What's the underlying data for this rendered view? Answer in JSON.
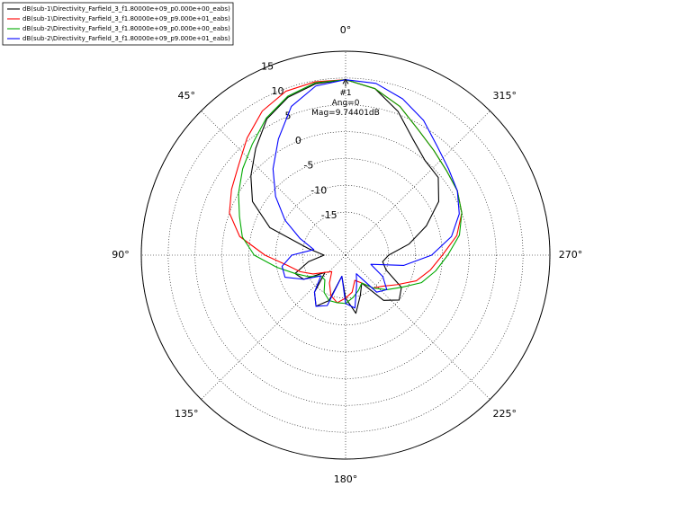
{
  "chart_data": {
    "type": "polar-line",
    "x": [
      0,
      10,
      20,
      30,
      40,
      50,
      60,
      70,
      80,
      90,
      100,
      110,
      120,
      130,
      140,
      150,
      160,
      170,
      180,
      190,
      200,
      210,
      220,
      230,
      240,
      250,
      260,
      270,
      280,
      290,
      300,
      310,
      320,
      330,
      340,
      350
    ],
    "xticks": [
      {
        "value": 0,
        "label": "0°"
      },
      {
        "value": 45,
        "label": "45°"
      },
      {
        "value": 90,
        "label": "90°"
      },
      {
        "value": 135,
        "label": "135°"
      },
      {
        "value": 180,
        "label": "180°"
      },
      {
        "value": 225,
        "label": "225°"
      },
      {
        "value": 270,
        "label": "270°"
      },
      {
        "value": 315,
        "label": "315°"
      }
    ],
    "ylim": [
      -23,
      15
    ],
    "yticks": [
      -15,
      -10,
      -5,
      0,
      5,
      10,
      15
    ],
    "grid": true,
    "legend": "upper-left",
    "series": [
      {
        "name": "dB(sub-1\\Directivity_Farfield_3_f1.80000e+09_p0.000e+00_eabs)",
        "color": "#000000",
        "values": [
          9.7,
          9.4,
          8.3,
          6.3,
          3,
          0,
          -3,
          -8,
          -16,
          -19,
          -16,
          -13,
          -14,
          -18,
          -14,
          -12,
          -14,
          -19,
          -15,
          -12,
          -15,
          -17,
          -12,
          -10,
          -11,
          -15,
          -16,
          -15,
          -11,
          -7,
          -3,
          -0.5,
          0,
          2,
          5.5,
          8.5
        ]
      },
      {
        "name": "dB(sub-1\\Directivity_Farfield_3_f1.80000e+09_p9.000e+01_eabs)",
        "color": "#ff0000",
        "values": [
          9.7,
          9.8,
          9.5,
          8,
          5.5,
          3,
          1.5,
          0,
          -3,
          -8,
          -12,
          -14,
          -16,
          -18,
          -19,
          -17,
          -15,
          -14,
          -15,
          -16,
          -18,
          -17,
          -15,
          -14,
          -12,
          -9,
          -7,
          -5,
          -2,
          0,
          1,
          1.5,
          2.5,
          4,
          6.5,
          8.5
        ]
      },
      {
        "name": "dB(sub-2\\Directivity_Farfield_3_f1.80000e+09_p0.000e+00_eabs)",
        "color": "#00aa00",
        "values": [
          9.7,
          9.6,
          8.5,
          6.5,
          4,
          2,
          0,
          -2,
          -3.5,
          -6,
          -10,
          -13,
          -15,
          -17,
          -17,
          -15,
          -14,
          -14,
          -14,
          -15,
          -16,
          -17,
          -15,
          -13,
          -11,
          -8,
          -6,
          -4,
          -1.5,
          0,
          1,
          1.5,
          2.5,
          4,
          6.5,
          8.5
        ]
      },
      {
        "name": "dB(sub-2\\Directivity_Farfield_3_f1.80000e+09_p9.000e+01_eabs)",
        "color": "#0000ff",
        "values": [
          9.7,
          9,
          6.5,
          2,
          -2,
          -6,
          -10,
          -14,
          -17,
          -13,
          -11,
          -11,
          -14,
          -17,
          -14,
          -12,
          -13,
          -19,
          -14,
          -13,
          -17,
          -19,
          -14,
          -13,
          -15,
          -18,
          -12,
          -7,
          -3,
          -0.5,
          1,
          2,
          3.5,
          6,
          8,
          9.5
        ]
      }
    ],
    "annotation": {
      "lines": [
        "#1",
        "Ang=0",
        "Mag=9.74401dB"
      ],
      "x": 0,
      "y": 9.74401
    }
  }
}
